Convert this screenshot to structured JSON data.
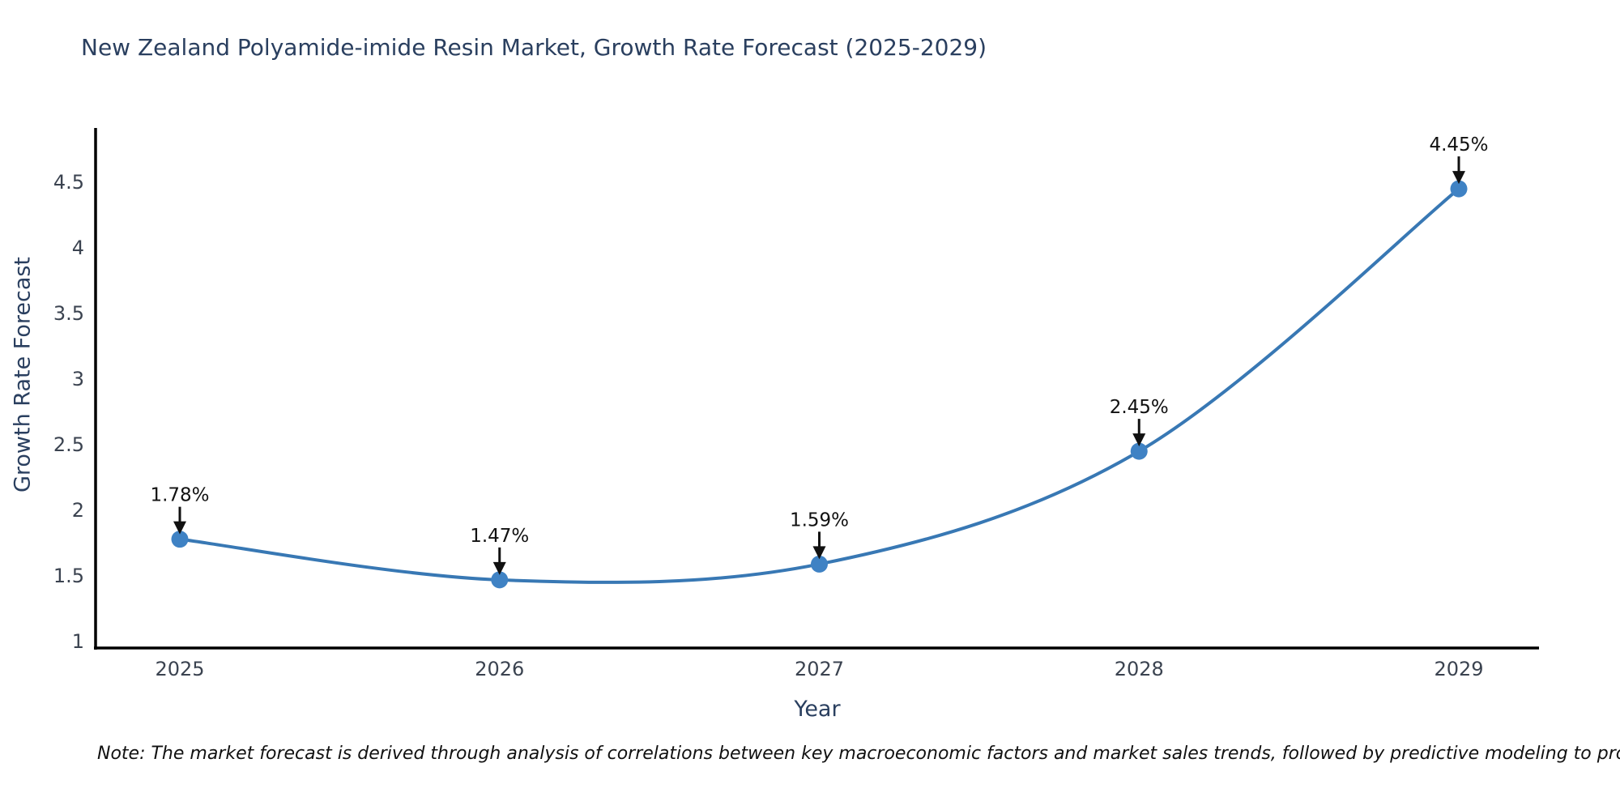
{
  "title": "New Zealand Polyamide-imide Resin Market, Growth Rate Forecast (2025-2029)",
  "note": "Note: The market forecast is derived through analysis of correlations between key macroeconomic factors and market sales trends, followed by predictive modeling to project future sales",
  "chart_data": {
    "type": "line",
    "title": "New Zealand Polyamide-imide Resin Market, Growth Rate Forecast (2025-2029)",
    "xlabel": "Year",
    "ylabel": "Growth Rate Forecast",
    "x": [
      2025,
      2026,
      2027,
      2028,
      2029
    ],
    "values": [
      1.78,
      1.47,
      1.59,
      2.45,
      4.45
    ],
    "point_labels": [
      "1.78%",
      "1.47%",
      "1.59%",
      "2.45%",
      "4.45%"
    ],
    "yticks": [
      1,
      1.5,
      2,
      2.5,
      3,
      3.5,
      4,
      4.5
    ],
    "ylim": [
      0.95,
      4.95
    ],
    "line_shape": "spline",
    "grid": false,
    "legend": "none",
    "colors": {
      "line": "#3878b4",
      "marker": "#3f82c4",
      "axis": "#000000",
      "title": "#2a3f5f",
      "tick": "#3b4350",
      "annotation": "#111111"
    }
  }
}
